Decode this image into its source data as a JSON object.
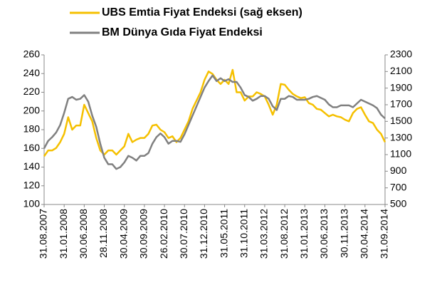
{
  "chart_data": {
    "type": "line",
    "categories": [
      "31.08.2007",
      null,
      null,
      null,
      null,
      "31.01.2008",
      null,
      null,
      null,
      null,
      "30.06.2008",
      null,
      null,
      null,
      null,
      "28.11.2008",
      null,
      null,
      null,
      null,
      "30.04.2009",
      null,
      null,
      null,
      null,
      "30.09.2009",
      null,
      null,
      null,
      null,
      "26.02.2010",
      null,
      null,
      null,
      null,
      "30.07.2010",
      null,
      null,
      null,
      null,
      "31.12.2010",
      null,
      null,
      null,
      null,
      "31.05.2011",
      null,
      null,
      null,
      null,
      "31.10.2011",
      null,
      null,
      null,
      null,
      "31.03.2012",
      null,
      null,
      null,
      null,
      "31.08.2012",
      null,
      null,
      null,
      null,
      "31.01.2013",
      null,
      null,
      null,
      null,
      "30.06.2013",
      null,
      null,
      null,
      null,
      "30.11.2013",
      null,
      null,
      null,
      null,
      "30.04.2014",
      null,
      null,
      null,
      null,
      "31.09.2014"
    ],
    "series": [
      {
        "name": "UBS Emtia Fiyat Endeksi (sağ eksen)",
        "color": "#f5c000",
        "axis": "y2",
        "values": [
          1080,
          1150,
          1150,
          1180,
          1250,
          1350,
          1550,
          1400,
          1450,
          1450,
          1700,
          1600,
          1500,
          1300,
          1150,
          1100,
          1150,
          1150,
          1100,
          1150,
          1200,
          1350,
          1250,
          1280,
          1300,
          1300,
          1350,
          1450,
          1460,
          1400,
          1370,
          1300,
          1320,
          1250,
          1300,
          1400,
          1500,
          1650,
          1750,
          1850,
          2000,
          2100,
          2070,
          2000,
          1950,
          2000,
          1950,
          2120,
          1850,
          1850,
          1750,
          1800,
          1800,
          1850,
          1830,
          1800,
          1700,
          1580,
          1700,
          1950,
          1940,
          1880,
          1830,
          1800,
          1780,
          1790,
          1720,
          1700,
          1650,
          1640,
          1600,
          1560,
          1580,
          1560,
          1550,
          1520,
          1500,
          1600,
          1650,
          1670,
          1580,
          1500,
          1480,
          1400,
          1350,
          1250
        ]
      },
      {
        "name": "BM Dünya Gıda Fiyat Endeksi",
        "color": "#808080",
        "values": [
          160,
          168,
          172,
          177,
          185,
          198,
          213,
          215,
          212,
          213,
          217,
          210,
          195,
          183,
          165,
          150,
          143,
          143,
          138,
          140,
          145,
          152,
          150,
          147,
          152,
          152,
          155,
          165,
          172,
          176,
          172,
          165,
          168,
          168,
          167,
          175,
          185,
          195,
          205,
          215,
          225,
          232,
          238,
          232,
          235,
          232,
          234,
          231,
          231,
          225,
          217,
          215,
          211,
          213,
          216,
          216,
          213,
          205,
          201,
          213,
          213,
          216,
          215,
          212,
          212,
          212,
          213,
          215,
          216,
          214,
          212,
          207,
          204,
          204,
          206,
          206,
          206,
          204,
          208,
          212,
          210,
          208,
          206,
          203,
          196,
          192
        ]
      }
    ],
    "ylim": [
      100,
      260
    ],
    "yticks": [
      100,
      120,
      140,
      160,
      180,
      200,
      220,
      240,
      260
    ],
    "y2lim": [
      500,
      2300
    ],
    "y2ticks": [
      500,
      700,
      900,
      1100,
      1300,
      1500,
      1700,
      1900,
      2100,
      2300
    ]
  }
}
